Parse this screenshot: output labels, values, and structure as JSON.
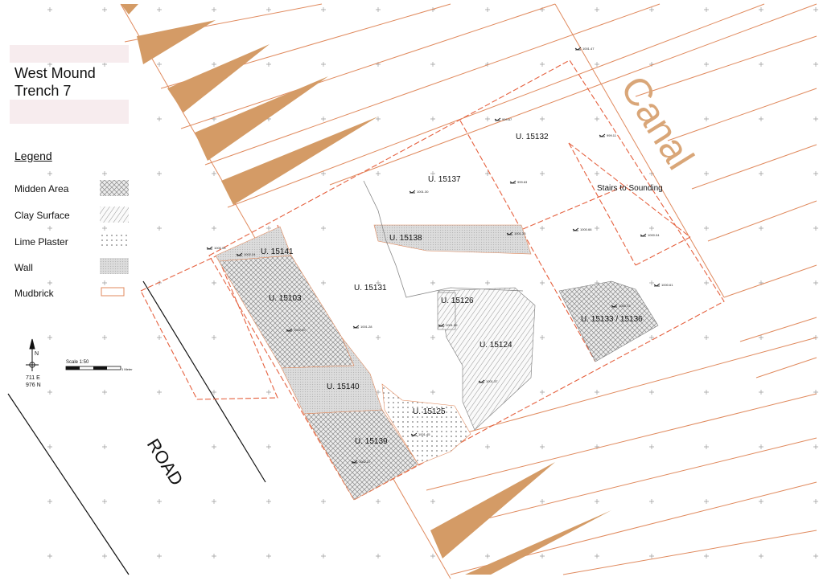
{
  "title": {
    "line1": "West Mound",
    "line2": "Trench 7"
  },
  "legend": {
    "heading": "Legend",
    "items": [
      {
        "label": "Midden Area",
        "pattern": "crosshatch"
      },
      {
        "label": "Clay Surface",
        "pattern": "diagonal"
      },
      {
        "label": "Lime Plaster",
        "pattern": "dots"
      },
      {
        "label": "Wall",
        "pattern": "gray"
      },
      {
        "label": "Mudbrick",
        "pattern": "outline"
      }
    ]
  },
  "north_arrow": {
    "letter": "N",
    "easting": "711 E",
    "northing": "976 N"
  },
  "scale": {
    "label": "Scale  1:50",
    "unit": "1 Meter"
  },
  "canal_label": "Canal",
  "road_label": "ROAD",
  "units": [
    {
      "id": "U. 15137"
    },
    {
      "id": "U. 15132"
    },
    {
      "id": "Stairs to Sounding"
    },
    {
      "id": "U. 15138"
    },
    {
      "id": "U. 15141"
    },
    {
      "id": "U. 15131"
    },
    {
      "id": "U. 15126"
    },
    {
      "id": "U. 15103"
    },
    {
      "id": "U. 15124"
    },
    {
      "id": "U. 15133 / 15136"
    },
    {
      "id": "U. 15140"
    },
    {
      "id": "U. 15125"
    },
    {
      "id": "U. 15139"
    }
  ],
  "elevations": [
    "1001.47",
    "999.67",
    "999.11",
    "1001.30",
    "999.63",
    "1001.33",
    "1000.66",
    "1000.04",
    "1000.03",
    "1002.24",
    "1000.61",
    "1000.72",
    "1001.28",
    "1002.20",
    "1001.59",
    "1001.37",
    "1001.45",
    "1002.37"
  ],
  "colors": {
    "brick": "#e08a5e",
    "canal_fill": "#d49b66",
    "trench_outline": "#e5613f",
    "canal_text": "#d9a678",
    "pattern_gray": "#a9a9a9"
  }
}
